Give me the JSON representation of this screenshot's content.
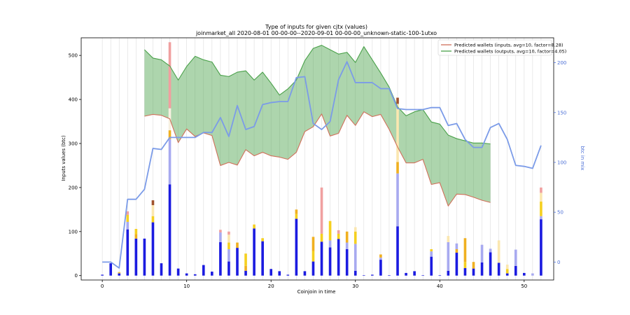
{
  "chart_data": {
    "type": "bar",
    "title": "Type of inputs for given cjtx (values)",
    "subtitle": "joinmarket_all 2020-08-01 00-00-00--2020-09-01 00-00-00_unknown-static-100-1utxo",
    "xlabel": "Coinjoin in time",
    "ylabel": "Inputs values (btc)",
    "y2label": "btc in mix",
    "xlim": [
      -2.5,
      53.5
    ],
    "ylim": [
      -10,
      540
    ],
    "y2lim": [
      -18,
      225
    ],
    "x_ticks": [
      0,
      10,
      20,
      30,
      40,
      50
    ],
    "y_ticks": [
      0,
      100,
      200,
      300,
      400,
      500
    ],
    "y2_ticks": [
      0,
      50,
      100,
      150,
      200
    ],
    "grid": "vertical",
    "legend_position": "top-right",
    "legend": [
      {
        "label": "Predicted wallets (inputs, avg=10, factor=8.28)",
        "color": "#d0705a"
      },
      {
        "label": "Predicted wallets (outputs, avg=10, factor=4.05)",
        "color": "#4aa14a"
      }
    ],
    "bar_segments": [
      {
        "x": 0,
        "parts": [
          [
            0,
            2,
            "#1b1be0"
          ]
        ]
      },
      {
        "x": 1,
        "parts": [
          [
            0,
            28,
            "#1b1be0"
          ]
        ]
      },
      {
        "x": 2,
        "parts": [
          [
            0,
            5,
            "#1b1be0"
          ],
          [
            5,
            8,
            "#f0c040"
          ]
        ]
      },
      {
        "x": 3,
        "parts": [
          [
            0,
            105,
            "#1b1be0"
          ],
          [
            105,
            122,
            "#a8aaf0"
          ],
          [
            122,
            138,
            "#f5d020"
          ],
          [
            138,
            146,
            "#f0a0a0"
          ]
        ]
      },
      {
        "x": 4,
        "parts": [
          [
            0,
            84,
            "#1b1be0"
          ],
          [
            84,
            94,
            "#f0b020"
          ],
          [
            94,
            106,
            "#f5d020"
          ]
        ]
      },
      {
        "x": 5,
        "parts": [
          [
            0,
            84,
            "#1b1be0"
          ]
        ]
      },
      {
        "x": 6,
        "parts": [
          [
            0,
            121,
            "#1b1be0"
          ],
          [
            121,
            135,
            "#f5d020"
          ],
          [
            135,
            160,
            "#fbe7b0"
          ],
          [
            160,
            171,
            "#a0522d"
          ]
        ]
      },
      {
        "x": 7,
        "parts": [
          [
            0,
            28,
            "#1b1be0"
          ]
        ]
      },
      {
        "x": 8,
        "parts": [
          [
            0,
            207,
            "#1b1be0"
          ],
          [
            207,
            310,
            "#a8aaf0"
          ],
          [
            310,
            330,
            "#f0b020"
          ],
          [
            330,
            380,
            "#f7f0e0"
          ],
          [
            380,
            530,
            "#f0a0a0"
          ]
        ]
      },
      {
        "x": 9,
        "parts": [
          [
            0,
            16,
            "#1b1be0"
          ]
        ]
      },
      {
        "x": 10,
        "parts": [
          [
            0,
            5,
            "#1b1be0"
          ]
        ]
      },
      {
        "x": 11,
        "parts": [
          [
            0,
            3,
            "#1b1be0"
          ]
        ]
      },
      {
        "x": 12,
        "parts": [
          [
            0,
            24,
            "#1b1be0"
          ]
        ]
      },
      {
        "x": 13,
        "parts": [
          [
            0,
            9,
            "#1b1be0"
          ]
        ]
      },
      {
        "x": 14,
        "parts": [
          [
            0,
            76,
            "#1b1be0"
          ],
          [
            76,
            98,
            "#a8aaf0"
          ],
          [
            98,
            104,
            "#f0a0a0"
          ]
        ]
      },
      {
        "x": 15,
        "parts": [
          [
            0,
            32,
            "#1b1be0"
          ],
          [
            32,
            60,
            "#a8aaf0"
          ],
          [
            60,
            75,
            "#f5d020"
          ],
          [
            75,
            93,
            "#fbe7b0"
          ],
          [
            93,
            100,
            "#f0a0a0"
          ]
        ]
      },
      {
        "x": 16,
        "parts": [
          [
            0,
            63,
            "#1b1be0"
          ],
          [
            63,
            75,
            "#f0b020"
          ]
        ]
      },
      {
        "x": 17,
        "parts": [
          [
            0,
            11,
            "#1b1be0"
          ],
          [
            11,
            22,
            "#f0b020"
          ],
          [
            22,
            50,
            "#f5d020"
          ]
        ]
      },
      {
        "x": 18,
        "parts": [
          [
            0,
            107,
            "#1b1be0"
          ],
          [
            107,
            116,
            "#f5d020"
          ]
        ]
      },
      {
        "x": 19,
        "parts": [
          [
            0,
            78,
            "#1b1be0"
          ],
          [
            78,
            85,
            "#f5d020"
          ]
        ]
      },
      {
        "x": 20,
        "parts": [
          [
            0,
            15,
            "#1b1be0"
          ]
        ]
      },
      {
        "x": 21,
        "parts": [
          [
            0,
            10,
            "#1b1be0"
          ]
        ]
      },
      {
        "x": 22,
        "parts": [
          [
            0,
            2,
            "#1b1be0"
          ]
        ]
      },
      {
        "x": 23,
        "parts": [
          [
            0,
            129,
            "#1b1be0"
          ],
          [
            129,
            140,
            "#f5d020"
          ],
          [
            140,
            150,
            "#f0b020"
          ]
        ]
      },
      {
        "x": 24,
        "parts": [
          [
            0,
            10,
            "#1b1be0"
          ]
        ]
      },
      {
        "x": 25,
        "parts": [
          [
            0,
            32,
            "#1b1be0"
          ],
          [
            32,
            56,
            "#f5d020"
          ],
          [
            56,
            88,
            "#f0b020"
          ]
        ]
      },
      {
        "x": 26,
        "parts": [
          [
            0,
            77,
            "#1b1be0"
          ],
          [
            77,
            95,
            "#f5d020"
          ],
          [
            95,
            200,
            "#f0a0a0"
          ]
        ]
      },
      {
        "x": 27,
        "parts": [
          [
            0,
            64,
            "#1b1be0"
          ],
          [
            64,
            80,
            "#a8aaf0"
          ],
          [
            80,
            124,
            "#f5d020"
          ]
        ]
      },
      {
        "x": 28,
        "parts": [
          [
            0,
            83,
            "#1b1be0"
          ],
          [
            83,
            95,
            "#f5d020"
          ],
          [
            95,
            103,
            "#f0a0a0"
          ]
        ]
      },
      {
        "x": 29,
        "parts": [
          [
            0,
            60,
            "#1b1be0"
          ],
          [
            60,
            75,
            "#a8aaf0"
          ],
          [
            75,
            100,
            "#f0b020"
          ]
        ]
      },
      {
        "x": 30,
        "parts": [
          [
            0,
            11,
            "#1b1be0"
          ],
          [
            11,
            72,
            "#a8aaf0"
          ],
          [
            72,
            100,
            "#f5d020"
          ],
          [
            100,
            110,
            "#fbe7b0"
          ]
        ]
      },
      {
        "x": 31,
        "parts": [
          [
            0,
            1,
            "#1b1be0"
          ]
        ]
      },
      {
        "x": 32,
        "parts": [
          [
            0,
            2,
            "#1b1be0"
          ]
        ]
      },
      {
        "x": 33,
        "parts": [
          [
            0,
            36,
            "#1b1be0"
          ],
          [
            36,
            41,
            "#a8aaf0"
          ],
          [
            41,
            48,
            "#f0b020"
          ]
        ]
      },
      {
        "x": 34,
        "parts": [
          [
            0,
            1,
            "#1b1be0"
          ]
        ]
      },
      {
        "x": 35,
        "parts": [
          [
            0,
            112,
            "#1b1be0"
          ],
          [
            112,
            232,
            "#a8aaf0"
          ],
          [
            232,
            258,
            "#f0b020"
          ],
          [
            258,
            390,
            "#fbe7b0"
          ],
          [
            390,
            404,
            "#a0522d"
          ]
        ]
      },
      {
        "x": 36,
        "parts": [
          [
            0,
            6,
            "#1b1be0"
          ]
        ]
      },
      {
        "x": 37,
        "parts": [
          [
            0,
            10,
            "#1b1be0"
          ]
        ]
      },
      {
        "x": 38,
        "parts": [
          [
            0,
            1,
            "#1b1be0"
          ]
        ]
      },
      {
        "x": 39,
        "parts": [
          [
            0,
            43,
            "#1b1be0"
          ],
          [
            43,
            55,
            "#a8aaf0"
          ],
          [
            55,
            60,
            "#f5d020"
          ]
        ]
      },
      {
        "x": 40,
        "parts": [
          [
            0,
            1,
            "#1b1be0"
          ]
        ]
      },
      {
        "x": 41,
        "parts": [
          [
            0,
            11,
            "#1b1be0"
          ],
          [
            11,
            76,
            "#a8aaf0"
          ],
          [
            76,
            90,
            "#fbe7b0"
          ]
        ]
      },
      {
        "x": 42,
        "parts": [
          [
            0,
            52,
            "#1b1be0"
          ],
          [
            52,
            60,
            "#f0b020"
          ],
          [
            60,
            73,
            "#a8aaf0"
          ]
        ]
      },
      {
        "x": 43,
        "parts": [
          [
            0,
            17,
            "#1b1be0"
          ],
          [
            17,
            31,
            "#f5d020"
          ],
          [
            31,
            85,
            "#f0b020"
          ]
        ]
      },
      {
        "x": 44,
        "parts": [
          [
            0,
            16,
            "#1b1be0"
          ],
          [
            16,
            31,
            "#f0b020"
          ]
        ]
      },
      {
        "x": 45,
        "parts": [
          [
            0,
            30,
            "#1b1be0"
          ],
          [
            30,
            70,
            "#a8aaf0"
          ]
        ]
      },
      {
        "x": 46,
        "parts": [
          [
            0,
            53,
            "#1b1be0"
          ],
          [
            53,
            61,
            "#a8aaf0"
          ]
        ]
      },
      {
        "x": 47,
        "parts": [
          [
            0,
            29,
            "#1b1be0"
          ],
          [
            29,
            80,
            "#fbe7b0"
          ]
        ]
      },
      {
        "x": 48,
        "parts": [
          [
            0,
            5,
            "#1b1be0"
          ],
          [
            5,
            15,
            "#f5d020"
          ],
          [
            15,
            25,
            "#fbe7b0"
          ]
        ]
      },
      {
        "x": 49,
        "parts": [
          [
            0,
            22,
            "#1b1be0"
          ],
          [
            22,
            59,
            "#a8aaf0"
          ]
        ]
      },
      {
        "x": 50,
        "parts": [
          [
            0,
            6,
            "#1b1be0"
          ]
        ]
      },
      {
        "x": 51,
        "parts": [
          [
            0,
            5,
            "#a8aaf0"
          ]
        ]
      },
      {
        "x": 52,
        "parts": [
          [
            0,
            128,
            "#1b1be0"
          ],
          [
            128,
            135,
            "#a8aaf0"
          ],
          [
            135,
            168,
            "#f5d020"
          ],
          [
            168,
            188,
            "#fbe7b0"
          ],
          [
            188,
            200,
            "#f0a0a0"
          ]
        ]
      }
    ],
    "series": [
      {
        "name": "Predicted wallets (inputs, avg=10, factor=8.28)",
        "axis": "left",
        "color": "#d0705a",
        "x": [
          5,
          6,
          7,
          8,
          9,
          10,
          11,
          12,
          13,
          14,
          15,
          16,
          17,
          18,
          19,
          20,
          21,
          22,
          23,
          24,
          25,
          26,
          27,
          28,
          29,
          30,
          31,
          32,
          33,
          34,
          35,
          36,
          37,
          38,
          39,
          40,
          41,
          42,
          43,
          44,
          45,
          46
        ],
        "values": [
          362,
          366,
          364,
          356,
          302,
          333,
          316,
          324,
          318,
          250,
          257,
          251,
          286,
          272,
          280,
          272,
          269,
          264,
          280,
          327,
          338,
          367,
          317,
          323,
          364,
          341,
          372,
          361,
          366,
          332,
          292,
          256,
          256,
          264,
          207,
          211,
          158,
          185,
          184,
          178,
          171,
          166
        ]
      },
      {
        "name": "Predicted wallets (outputs, avg=10, factor=4.05)",
        "axis": "left",
        "color": "#4aa14a",
        "fill_between": true,
        "x": [
          5,
          6,
          7,
          8,
          9,
          10,
          11,
          12,
          13,
          14,
          15,
          16,
          17,
          18,
          19,
          20,
          21,
          22,
          23,
          24,
          25,
          26,
          27,
          28,
          29,
          30,
          31,
          32,
          33,
          34,
          35,
          36,
          37,
          38,
          39,
          40,
          41,
          42,
          43,
          44,
          45,
          46
        ],
        "values": [
          513,
          494,
          490,
          476,
          444,
          475,
          498,
          490,
          485,
          455,
          452,
          462,
          465,
          444,
          462,
          437,
          410,
          424,
          444,
          488,
          516,
          523,
          513,
          503,
          507,
          484,
          520,
          490,
          460,
          428,
          383,
          363,
          372,
          377,
          349,
          344,
          319,
          311,
          306,
          301,
          301,
          299
        ]
      },
      {
        "name": "",
        "axis": "right",
        "color": "#7b9be8",
        "x": [
          0,
          1,
          2,
          3,
          4,
          5,
          6,
          7,
          8,
          9,
          10,
          11,
          12,
          13,
          14,
          15,
          16,
          17,
          18,
          19,
          20,
          21,
          22,
          23,
          24,
          25,
          26,
          27,
          28,
          29,
          30,
          31,
          32,
          33,
          34,
          35,
          36,
          37,
          38,
          39,
          40,
          41,
          42,
          43,
          44,
          45,
          46,
          47,
          48,
          49,
          50,
          51,
          52
        ],
        "values": [
          0,
          0,
          -6,
          63,
          63,
          73,
          114,
          113,
          125,
          125,
          125,
          125,
          130,
          130,
          145,
          126,
          157,
          133,
          136,
          158,
          160,
          161,
          161,
          185,
          186,
          139,
          133,
          141,
          183,
          201,
          180,
          180,
          180,
          174,
          174,
          154,
          153,
          153,
          153,
          155,
          155,
          137,
          139,
          123,
          115,
          115,
          135,
          139,
          123,
          97,
          96,
          94,
          117
        ]
      }
    ]
  }
}
